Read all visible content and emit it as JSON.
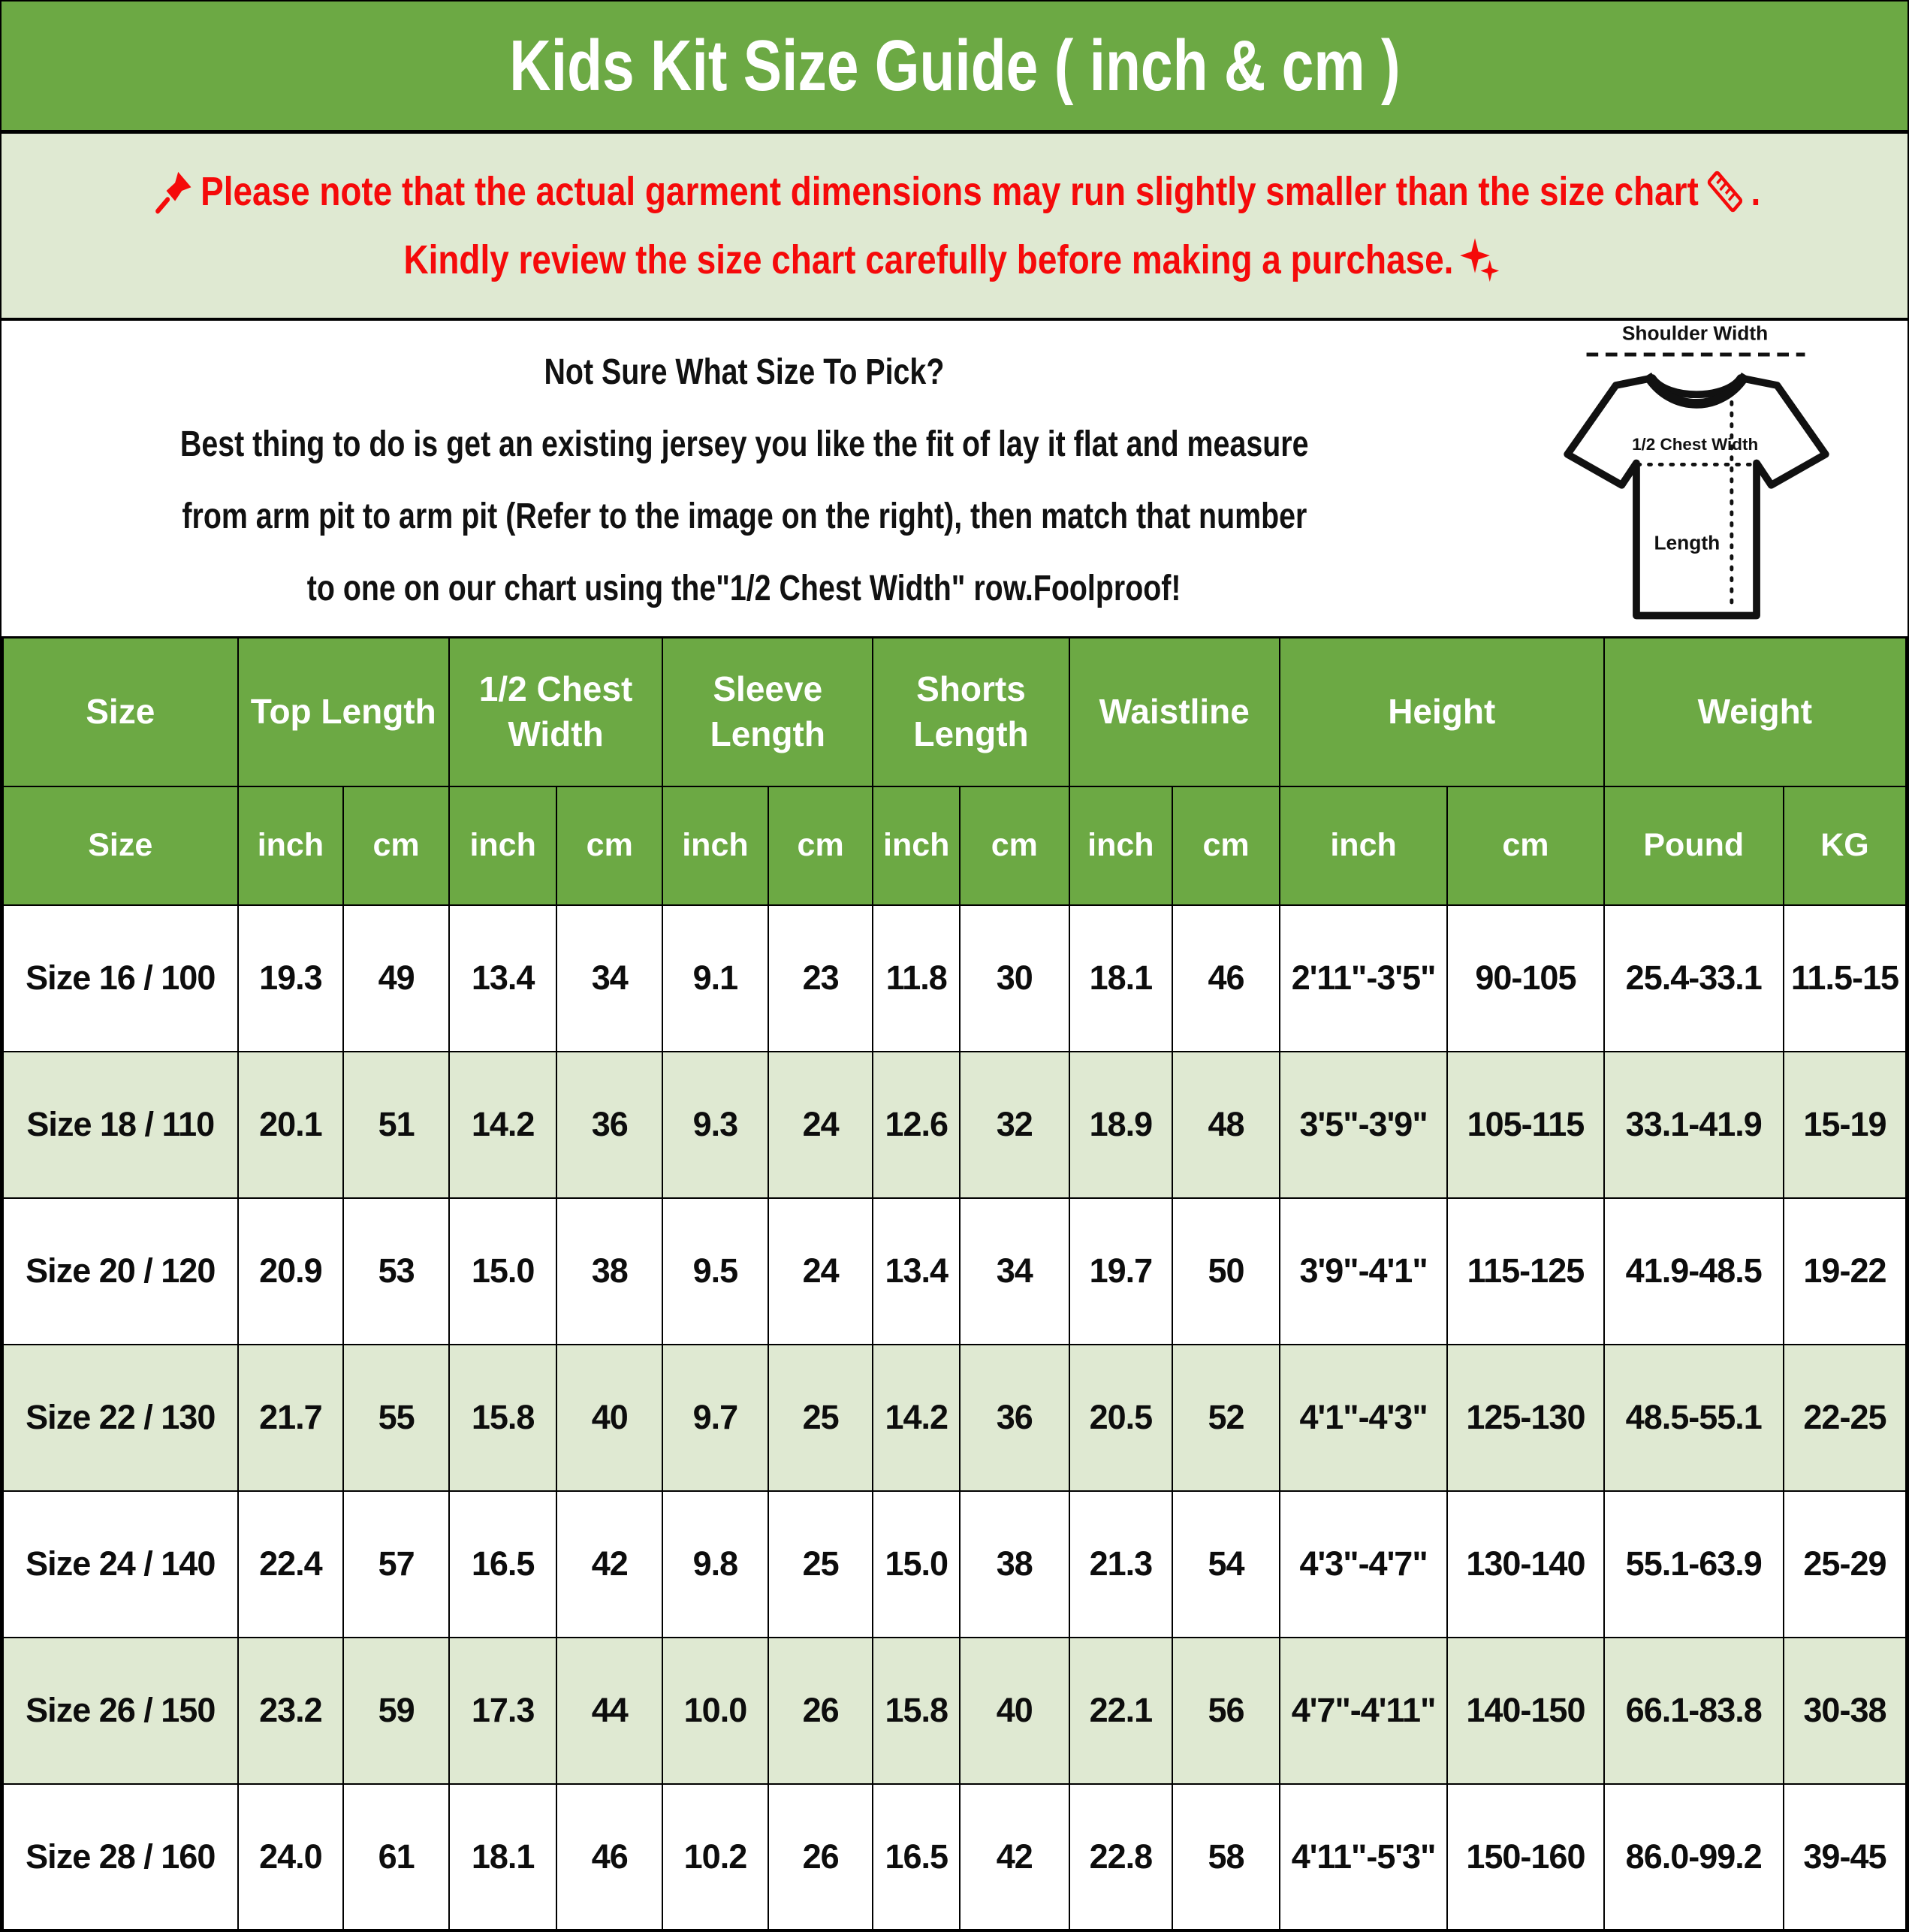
{
  "title": "Kids Kit Size Guide ( inch & cm )",
  "notice": {
    "line1": "Please note that the actual garment dimensions may run slightly smaller than the size chart",
    "line1_suffix": ".",
    "line2": "Kindly review the size chart carefully before making a purchase.",
    "pushpin_icon": "pushpin",
    "ruler_icon": "ruler",
    "sparkles_icon": "sparkles"
  },
  "sizing_help": {
    "heading": "Not Sure What Size To Pick?",
    "line1": "Best thing to do is get an existing jersey you like the fit of lay it flat and measure",
    "line2": "from arm pit to arm pit (Refer to the image on the right), then match that number",
    "line3": "to one on our chart using the\"1/2 Chest Width\" row.Foolproof!"
  },
  "diagram": {
    "shoulder_label": "Shoulder Width",
    "chest_label": "1/2 Chest Width",
    "length_label": "Length"
  },
  "table": {
    "groups": [
      {
        "label": "Size",
        "span": 1
      },
      {
        "label": "Top Length",
        "span": 2
      },
      {
        "label": "1/2 Chest Width",
        "span": 2
      },
      {
        "label": "Sleeve Length",
        "span": 2
      },
      {
        "label": "Shorts Length",
        "span": 2
      },
      {
        "label": "Waistline",
        "span": 2
      },
      {
        "label": "Height",
        "span": 2
      },
      {
        "label": "Weight",
        "span": 2
      }
    ],
    "units": [
      "Size",
      "inch",
      "cm",
      "inch",
      "cm",
      "inch",
      "cm",
      "inch",
      "cm",
      "inch",
      "cm",
      "inch",
      "cm",
      "Pound",
      "KG"
    ],
    "rows": [
      [
        "Size 16 / 100",
        "19.3",
        "49",
        "13.4",
        "34",
        "9.1",
        "23",
        "11.8",
        "30",
        "18.1",
        "46",
        "2'11\"-3'5\"",
        "90-105",
        "25.4-33.1",
        "11.5-15"
      ],
      [
        "Size 18 / 110",
        "20.1",
        "51",
        "14.2",
        "36",
        "9.3",
        "24",
        "12.6",
        "32",
        "18.9",
        "48",
        "3'5\"-3'9\"",
        "105-115",
        "33.1-41.9",
        "15-19"
      ],
      [
        "Size 20 / 120",
        "20.9",
        "53",
        "15.0",
        "38",
        "9.5",
        "24",
        "13.4",
        "34",
        "19.7",
        "50",
        "3'9\"-4'1\"",
        "115-125",
        "41.9-48.5",
        "19-22"
      ],
      [
        "Size 22 / 130",
        "21.7",
        "55",
        "15.8",
        "40",
        "9.7",
        "25",
        "14.2",
        "36",
        "20.5",
        "52",
        "4'1\"-4'3\"",
        "125-130",
        "48.5-55.1",
        "22-25"
      ],
      [
        "Size 24 / 140",
        "22.4",
        "57",
        "16.5",
        "42",
        "9.8",
        "25",
        "15.0",
        "38",
        "21.3",
        "54",
        "4'3\"-4'7\"",
        "130-140",
        "55.1-63.9",
        "25-29"
      ],
      [
        "Size 26 / 150",
        "23.2",
        "59",
        "17.3",
        "44",
        "10.0",
        "26",
        "15.8",
        "40",
        "22.1",
        "56",
        "4'7\"-4'11\"",
        "140-150",
        "66.1-83.8",
        "30-38"
      ],
      [
        "Size 28 / 160",
        "24.0",
        "61",
        "18.1",
        "46",
        "10.2",
        "26",
        "16.5",
        "42",
        "22.8",
        "58",
        "4'11\"-5'3\"",
        "150-160",
        "86.0-99.2",
        "39-45"
      ]
    ]
  },
  "colors": {
    "green": "#6CA944",
    "lightgreen": "#DFE9D2",
    "red": "#F50A0A",
    "ink": "#111111"
  }
}
